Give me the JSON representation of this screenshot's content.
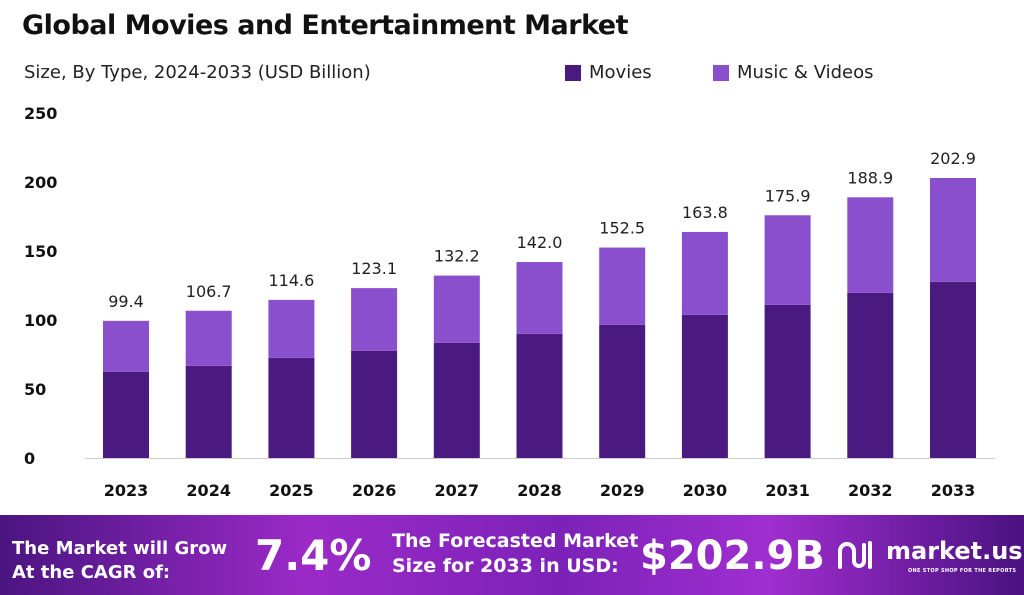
{
  "chart_data": {
    "type": "bar",
    "stacked": true,
    "title": "Global Movies and Entertainment Market",
    "subtitle": "Size, By Type, 2024-2033 (USD Billion)",
    "categories": [
      "2023",
      "2024",
      "2025",
      "2026",
      "2027",
      "2028",
      "2029",
      "2030",
      "2031",
      "2032",
      "2033"
    ],
    "series": [
      {
        "name": "Movies",
        "color": "#4a1a80",
        "values": [
          62.4,
          66.8,
          72.6,
          77.6,
          83.5,
          90.0,
          96.5,
          103.8,
          111.0,
          119.7,
          127.7
        ]
      },
      {
        "name": "Music & Videos",
        "color": "#8a4fcc",
        "values": [
          37.0,
          39.9,
          42.0,
          45.5,
          48.7,
          52.0,
          56.0,
          60.0,
          64.9,
          69.2,
          75.2
        ]
      }
    ],
    "totals": [
      "99.4",
      "106.7",
      "114.6",
      "123.1",
      "132.2",
      "142.0",
      "152.5",
      "163.8",
      "175.9",
      "188.9",
      "202.9"
    ],
    "yticks": [
      "0",
      "50",
      "100",
      "150",
      "200",
      "250"
    ],
    "ylim": [
      0,
      250
    ],
    "grid": false,
    "legend": "top-right"
  },
  "footer": {
    "cagr_label_1": "The Market will Grow",
    "cagr_label_2": "At the CAGR of:",
    "cagr_value": "7.4%",
    "forecast_label_1": "The Forecasted Market",
    "forecast_label_2": "Size for 2033 in USD:",
    "forecast_value": "$202.9B",
    "brand": "market.us",
    "brand_tagline": "ONE STOP SHOP FOR THE REPORTS"
  }
}
